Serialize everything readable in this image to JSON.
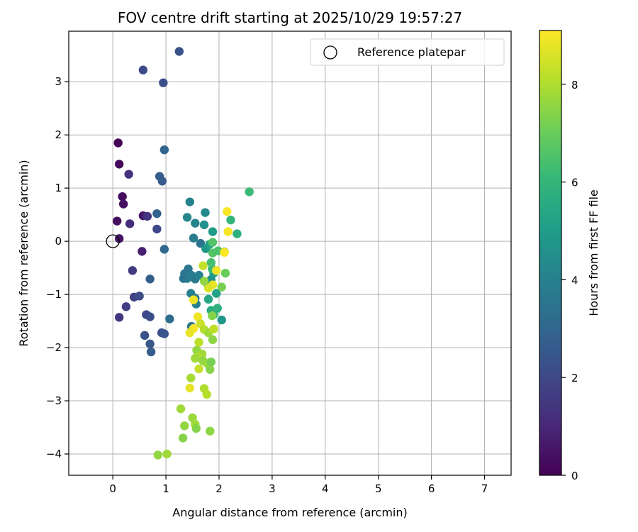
{
  "chart_data": {
    "type": "scatter",
    "title": "FOV centre drift starting at 2025/10/29 19:57:27",
    "xlabel": "Angular distance from reference (arcmin)",
    "ylabel": "Rotation from reference (arcmin)",
    "xlim": [
      -0.83,
      7.5
    ],
    "ylim": [
      -4.4,
      3.95
    ],
    "xticks": [
      0,
      1,
      2,
      3,
      4,
      5,
      6,
      7
    ],
    "yticks": [
      -4,
      -3,
      -2,
      -1,
      0,
      1,
      2,
      3
    ],
    "grid": true,
    "legend": {
      "position": "top-right",
      "entries": [
        {
          "label": "Reference platepar",
          "marker": "open-circle"
        }
      ]
    },
    "reference_point": {
      "x": 0,
      "y": 0
    },
    "colorbar": {
      "label": "Hours from first FF file",
      "min": 0,
      "max": 9.1,
      "ticks": [
        0,
        2,
        4,
        6,
        8
      ],
      "colormap": "viridis",
      "colormap_stops": [
        "#440154",
        "#482878",
        "#3e4989",
        "#31688e",
        "#26828e",
        "#1f9e89",
        "#35b779",
        "#6ece58",
        "#b5de2b",
        "#fde725"
      ]
    },
    "points": [
      {
        "x": 0.1,
        "y": 1.85,
        "c": 0.1
      },
      {
        "x": 0.12,
        "y": 1.45,
        "c": 0.2
      },
      {
        "x": 0.18,
        "y": 0.84,
        "c": 0.3
      },
      {
        "x": 0.2,
        "y": 0.7,
        "c": 0.4
      },
      {
        "x": 0.08,
        "y": 0.38,
        "c": 0.3
      },
      {
        "x": 0.12,
        "y": 0.05,
        "c": 0.5
      },
      {
        "x": 0.57,
        "y": 0.48,
        "c": 0.6
      },
      {
        "x": 0.55,
        "y": -0.19,
        "c": 0.8
      },
      {
        "x": 0.3,
        "y": 1.26,
        "c": 1.3
      },
      {
        "x": 0.32,
        "y": 0.33,
        "c": 1.2
      },
      {
        "x": 0.65,
        "y": 0.47,
        "c": 1.4
      },
      {
        "x": 0.12,
        "y": -1.43,
        "c": 1.5
      },
      {
        "x": 0.37,
        "y": -0.55,
        "c": 1.6
      },
      {
        "x": 0.4,
        "y": -1.05,
        "c": 1.8
      },
      {
        "x": 0.5,
        "y": -1.03,
        "c": 2.1
      },
      {
        "x": 0.25,
        "y": -1.23,
        "c": 1.7
      },
      {
        "x": 0.63,
        "y": -1.38,
        "c": 2.0
      },
      {
        "x": 0.7,
        "y": -1.42,
        "c": 2.2
      },
      {
        "x": 0.6,
        "y": -1.77,
        "c": 2.3
      },
      {
        "x": 0.7,
        "y": -1.93,
        "c": 2.5
      },
      {
        "x": 0.72,
        "y": -2.08,
        "c": 2.6
      },
      {
        "x": 0.92,
        "y": -1.72,
        "c": 2.2
      },
      {
        "x": 0.97,
        "y": -1.74,
        "c": 2.4
      },
      {
        "x": 0.7,
        "y": -0.71,
        "c": 2.7
      },
      {
        "x": 0.83,
        "y": 0.52,
        "c": 2.8
      },
      {
        "x": 0.83,
        "y": 0.23,
        "c": 2.0
      },
      {
        "x": 0.88,
        "y": 1.22,
        "c": 2.7
      },
      {
        "x": 0.93,
        "y": 1.13,
        "c": 2.6
      },
      {
        "x": 0.57,
        "y": 3.22,
        "c": 2.1
      },
      {
        "x": 0.95,
        "y": 2.98,
        "c": 2.2
      },
      {
        "x": 1.25,
        "y": 3.57,
        "c": 2.3
      },
      {
        "x": 0.97,
        "y": 1.72,
        "c": 2.9
      },
      {
        "x": 0.97,
        "y": -0.15,
        "c": 3.0
      },
      {
        "x": 1.07,
        "y": -1.46,
        "c": 3.2
      },
      {
        "x": 1.45,
        "y": 0.74,
        "c": 4.0
      },
      {
        "x": 1.4,
        "y": 0.45,
        "c": 4.2
      },
      {
        "x": 1.55,
        "y": 0.34,
        "c": 4.1
      },
      {
        "x": 1.52,
        "y": 0.06,
        "c": 3.8
      },
      {
        "x": 1.65,
        "y": -0.04,
        "c": 3.5
      },
      {
        "x": 1.74,
        "y": 0.54,
        "c": 4.3
      },
      {
        "x": 1.72,
        "y": 0.31,
        "c": 4.6
      },
      {
        "x": 1.88,
        "y": 0.18,
        "c": 5.0
      },
      {
        "x": 1.75,
        "y": -0.14,
        "c": 4.8
      },
      {
        "x": 1.82,
        "y": -0.06,
        "c": 5.2
      },
      {
        "x": 1.42,
        "y": -0.52,
        "c": 3.6
      },
      {
        "x": 1.35,
        "y": -0.61,
        "c": 3.6
      },
      {
        "x": 1.4,
        "y": -0.7,
        "c": 3.9
      },
      {
        "x": 1.33,
        "y": -0.7,
        "c": 3.5
      },
      {
        "x": 1.48,
        "y": -0.64,
        "c": 3.9
      },
      {
        "x": 1.55,
        "y": -0.71,
        "c": 3.7
      },
      {
        "x": 1.62,
        "y": -0.64,
        "c": 4.0
      },
      {
        "x": 1.47,
        "y": -0.98,
        "c": 4.0
      },
      {
        "x": 1.55,
        "y": -1.07,
        "c": 3.8
      },
      {
        "x": 1.57,
        "y": -1.18,
        "c": 3.9
      },
      {
        "x": 1.48,
        "y": -1.6,
        "c": 3.6
      },
      {
        "x": 1.77,
        "y": -0.78,
        "c": 4.4
      },
      {
        "x": 1.85,
        "y": -0.72,
        "c": 4.6
      },
      {
        "x": 1.9,
        "y": -0.6,
        "c": 5.0
      },
      {
        "x": 1.95,
        "y": -0.98,
        "c": 5.2
      },
      {
        "x": 1.8,
        "y": -1.09,
        "c": 5.4
      },
      {
        "x": 1.85,
        "y": -1.3,
        "c": 5.6
      },
      {
        "x": 2.05,
        "y": -1.48,
        "c": 4.8
      },
      {
        "x": 1.9,
        "y": -1.38,
        "c": 6.0
      },
      {
        "x": 1.97,
        "y": -1.26,
        "c": 5.8
      },
      {
        "x": 1.87,
        "y": -0.52,
        "c": 6.2
      },
      {
        "x": 1.85,
        "y": -0.4,
        "c": 6.4
      },
      {
        "x": 1.88,
        "y": -0.22,
        "c": 6.6
      },
      {
        "x": 1.88,
        "y": -0.02,
        "c": 6.6
      },
      {
        "x": 1.98,
        "y": -0.18,
        "c": 6.5
      },
      {
        "x": 2.1,
        "y": -0.2,
        "c": 6.8
      },
      {
        "x": 2.12,
        "y": -0.6,
        "c": 7.0
      },
      {
        "x": 2.05,
        "y": -0.86,
        "c": 7.2
      },
      {
        "x": 2.22,
        "y": 0.4,
        "c": 6.0
      },
      {
        "x": 2.34,
        "y": 0.14,
        "c": 5.8
      },
      {
        "x": 2.57,
        "y": 0.93,
        "c": 6.2
      },
      {
        "x": 2.15,
        "y": 0.56,
        "c": 9.0
      },
      {
        "x": 2.17,
        "y": 0.18,
        "c": 9.0
      },
      {
        "x": 2.1,
        "y": -0.21,
        "c": 9.1
      },
      {
        "x": 1.95,
        "y": -0.55,
        "c": 8.9
      },
      {
        "x": 1.88,
        "y": -0.82,
        "c": 8.8
      },
      {
        "x": 1.8,
        "y": -0.88,
        "c": 8.6
      },
      {
        "x": 1.7,
        "y": -0.46,
        "c": 8.3
      },
      {
        "x": 1.72,
        "y": -0.75,
        "c": 7.6
      },
      {
        "x": 1.6,
        "y": -1.42,
        "c": 8.9
      },
      {
        "x": 1.52,
        "y": -1.64,
        "c": 9.0
      },
      {
        "x": 1.45,
        "y": -1.72,
        "c": 8.8
      },
      {
        "x": 1.65,
        "y": -1.55,
        "c": 8.4
      },
      {
        "x": 1.72,
        "y": -1.66,
        "c": 8.1
      },
      {
        "x": 1.8,
        "y": -1.72,
        "c": 7.8
      },
      {
        "x": 1.87,
        "y": -1.4,
        "c": 7.4
      },
      {
        "x": 1.9,
        "y": -1.65,
        "c": 8.2
      },
      {
        "x": 1.88,
        "y": -1.85,
        "c": 7.5
      },
      {
        "x": 1.62,
        "y": -1.9,
        "c": 8.2
      },
      {
        "x": 1.58,
        "y": -2.05,
        "c": 7.6
      },
      {
        "x": 1.68,
        "y": -2.12,
        "c": 7.8
      },
      {
        "x": 1.6,
        "y": -2.18,
        "c": 8.0
      },
      {
        "x": 1.55,
        "y": -2.2,
        "c": 7.8
      },
      {
        "x": 1.7,
        "y": -2.25,
        "c": 7.6
      },
      {
        "x": 1.78,
        "y": -2.3,
        "c": 7.7
      },
      {
        "x": 1.85,
        "y": -2.27,
        "c": 7.2
      },
      {
        "x": 1.62,
        "y": -2.4,
        "c": 8.3
      },
      {
        "x": 1.83,
        "y": -2.41,
        "c": 7.4
      },
      {
        "x": 1.47,
        "y": -2.57,
        "c": 7.9
      },
      {
        "x": 1.45,
        "y": -2.76,
        "c": 8.8
      },
      {
        "x": 1.72,
        "y": -2.77,
        "c": 8.0
      },
      {
        "x": 1.77,
        "y": -2.88,
        "c": 8.1
      },
      {
        "x": 1.28,
        "y": -3.15,
        "c": 7.8
      },
      {
        "x": 1.5,
        "y": -3.32,
        "c": 7.7
      },
      {
        "x": 1.55,
        "y": -3.44,
        "c": 7.8
      },
      {
        "x": 1.35,
        "y": -3.47,
        "c": 7.6
      },
      {
        "x": 1.57,
        "y": -3.52,
        "c": 7.4
      },
      {
        "x": 1.83,
        "y": -3.57,
        "c": 7.5
      },
      {
        "x": 1.32,
        "y": -3.7,
        "c": 7.4
      },
      {
        "x": 0.85,
        "y": -4.02,
        "c": 7.6
      },
      {
        "x": 1.02,
        "y": -4.0,
        "c": 7.8
      },
      {
        "x": 1.52,
        "y": -1.1,
        "c": 8.9
      }
    ]
  }
}
